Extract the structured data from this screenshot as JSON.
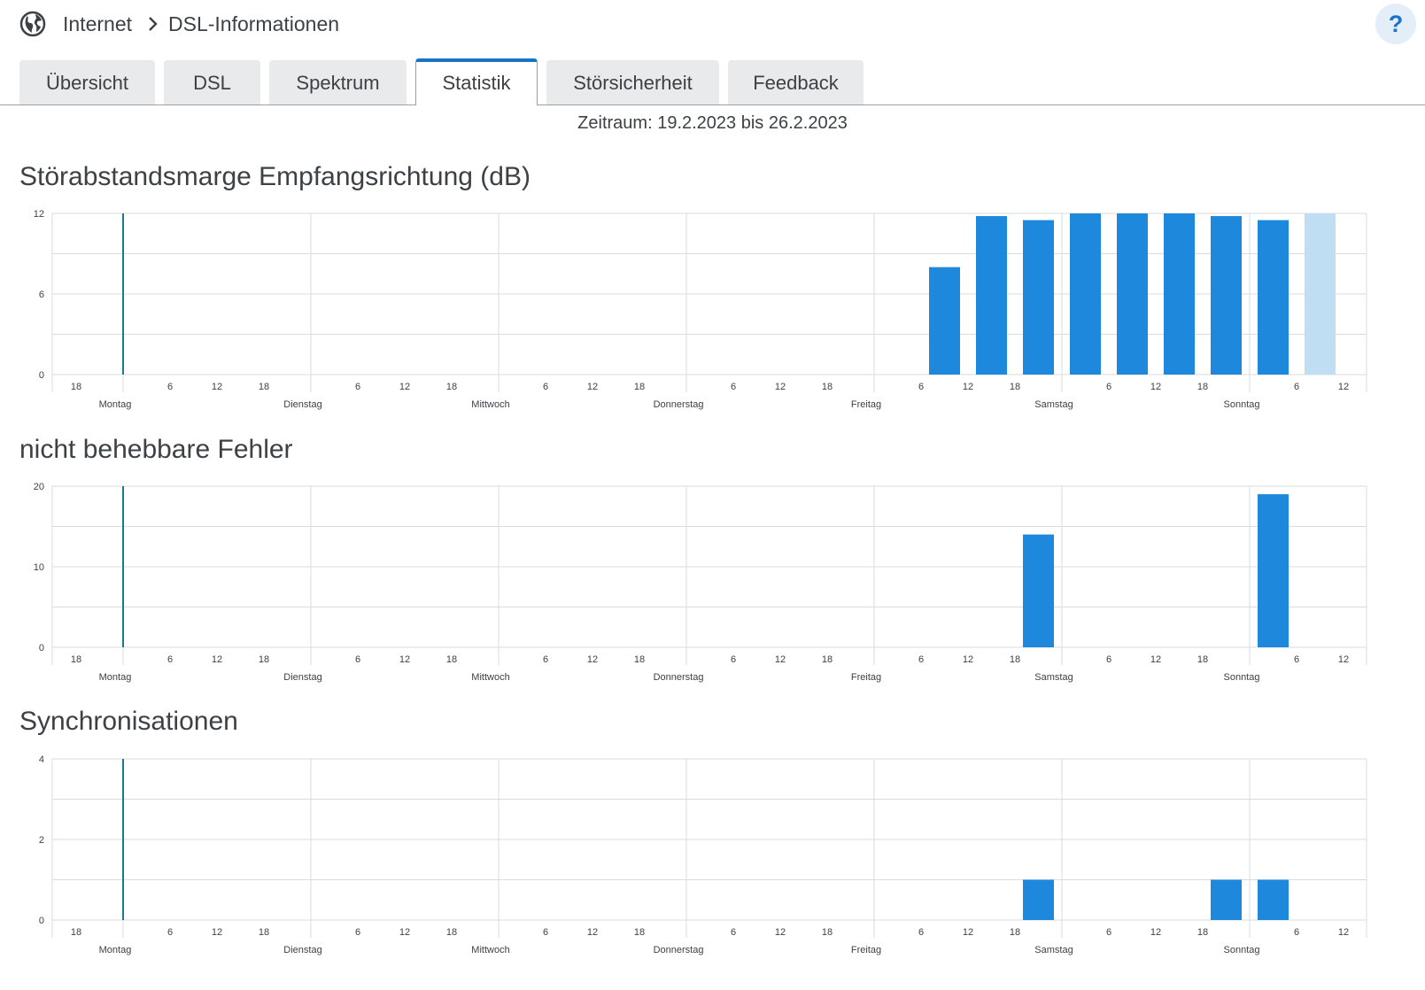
{
  "header": {
    "icon": "globe-icon",
    "breadcrumb_root": "Internet",
    "breadcrumb_current": "DSL-Informationen",
    "help_label": "?"
  },
  "tabs": [
    {
      "label": "Übersicht",
      "active": false
    },
    {
      "label": "DSL",
      "active": false
    },
    {
      "label": "Spektrum",
      "active": false
    },
    {
      "label": "Statistik",
      "active": true
    },
    {
      "label": "Störsicherheit",
      "active": false
    },
    {
      "label": "Feedback",
      "active": false
    }
  ],
  "period": "Zeitraum: 19.2.2023 bis 26.2.2023",
  "colors": {
    "bar": "#1e88dc",
    "bar_current": "#bfddf3",
    "marker": "#1d7a8c",
    "grid": "#d9dbdd",
    "active_tab": "#1a73c4"
  },
  "x_axis": {
    "hour_ticks": [
      "18",
      "6",
      "12",
      "18",
      "6",
      "12",
      "18",
      "6",
      "12",
      "18",
      "6",
      "12",
      "18",
      "6",
      "12",
      "18",
      "6",
      "12",
      "18",
      "6",
      "12"
    ],
    "days": [
      "Montag",
      "Dienstag",
      "Mittwoch",
      "Donnerstag",
      "Freitag",
      "Samstag",
      "Sonntag"
    ]
  },
  "charts": [
    {
      "title": "Störabstandsmarge Empfangsrichtung (dB)",
      "chart_data": {
        "type": "bar",
        "title": "Störabstandsmarge Empfangsrichtung (dB)",
        "xlabel": "",
        "ylabel": "",
        "ylim": [
          0,
          12
        ],
        "yticks": [
          "0",
          "6",
          "12"
        ],
        "categories": [
          "Fr 12",
          "Fr 18",
          "Sa 0",
          "Sa 6",
          "Sa 12",
          "Sa 18",
          "So 0",
          "So 6",
          "So 12"
        ],
        "values": [
          8,
          11.8,
          11.5,
          12,
          12,
          12,
          11.8,
          11.5,
          12
        ],
        "current_interval_index": 8,
        "grid": true,
        "legend": "none"
      }
    },
    {
      "title": "nicht behebbare Fehler",
      "chart_data": {
        "type": "bar",
        "title": "nicht behebbare Fehler",
        "xlabel": "",
        "ylabel": "",
        "ylim": [
          0,
          20
        ],
        "yticks": [
          "0",
          "10",
          "20"
        ],
        "categories": [
          "Sa 0",
          "So 6"
        ],
        "values": [
          14,
          19
        ],
        "grid": true,
        "legend": "none"
      }
    },
    {
      "title": "Synchronisationen",
      "chart_data": {
        "type": "bar",
        "title": "Synchronisationen",
        "xlabel": "",
        "ylabel": "",
        "ylim": [
          0,
          4
        ],
        "yticks": [
          "0",
          "2",
          "4"
        ],
        "categories": [
          "Sa 0",
          "So 0",
          "So 6"
        ],
        "values": [
          1,
          1,
          1
        ],
        "grid": true,
        "legend": "none"
      }
    }
  ]
}
